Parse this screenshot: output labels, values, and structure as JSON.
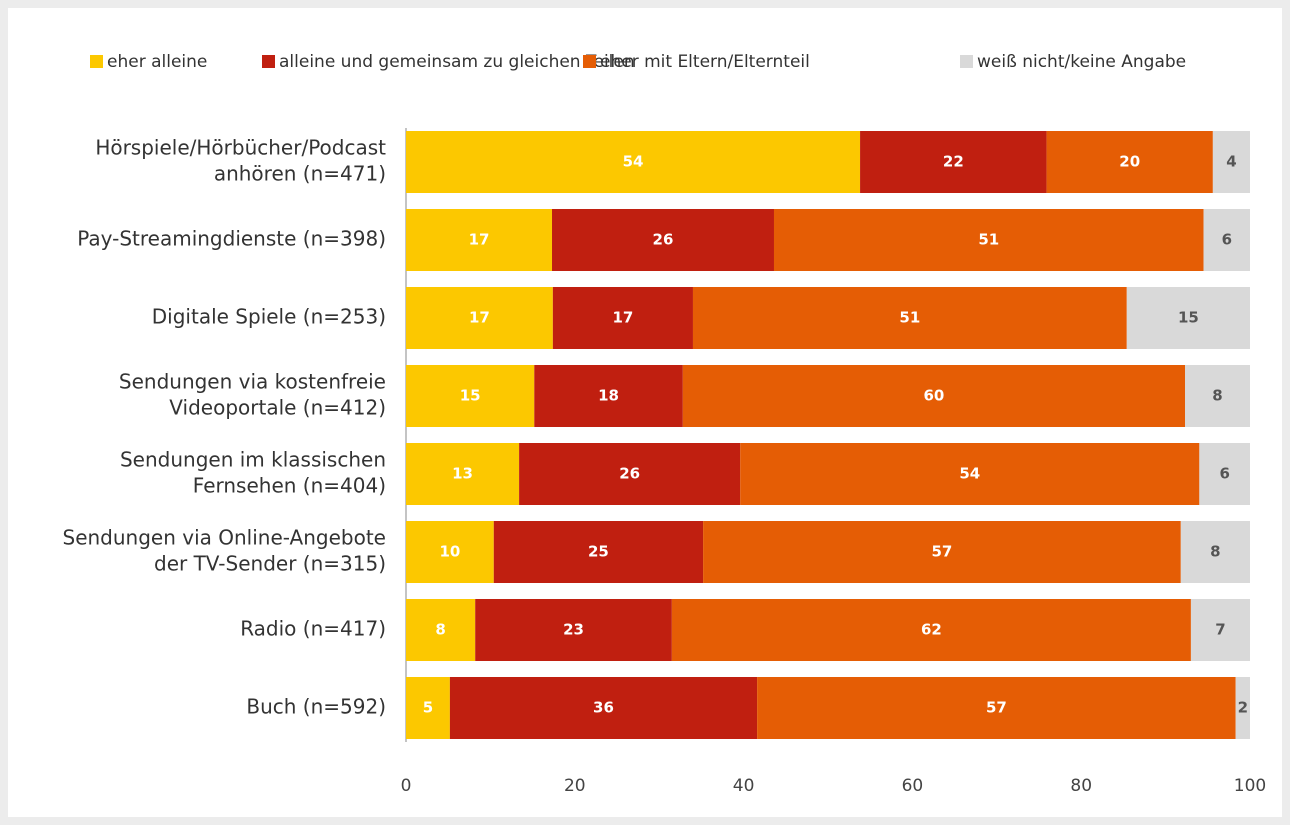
{
  "chart_data": {
    "type": "stacked-barh",
    "categories": [
      [
        "Hörspiele/Hörbücher/Podcast",
        "anhören (n=471)"
      ],
      [
        "Pay-Streamingdienste (n=398)"
      ],
      [
        "Digitale Spiele (n=253)"
      ],
      [
        "Sendungen via kostenfreie",
        "Videoportale (n=412)"
      ],
      [
        "Sendungen im klassischen",
        "Fernsehen (n=404)"
      ],
      [
        "Sendungen via Online-Angebote",
        "der TV-Sender (n=315)"
      ],
      [
        "Radio (n=417)"
      ],
      [
        "Buch (n=592)"
      ]
    ],
    "series": [
      {
        "name": "eher alleine",
        "color": "#fcc800",
        "label_color": "#ffffff",
        "values": [
          53.8,
          17.3,
          17.4,
          15.2,
          13.4,
          10.4,
          8.2,
          5.2
        ],
        "value_labels": [
          "54",
          "17",
          "17",
          "15",
          "13",
          "10",
          "8",
          "5"
        ]
      },
      {
        "name": "alleine und gemeinsam zu gleichen Teilen",
        "color": "#c01f10",
        "label_color": "#ffffff",
        "values": [
          22.1,
          26.3,
          16.6,
          17.6,
          26.2,
          24.8,
          23.3,
          36.4
        ],
        "value_labels": [
          "22",
          "26",
          "17",
          "18",
          "26",
          "25",
          "23",
          "36"
        ]
      },
      {
        "name": "eher mit Eltern/Elternteil",
        "color": "#e55d05",
        "label_color": "#ffffff",
        "values": [
          19.7,
          50.9,
          51.4,
          59.5,
          54.4,
          56.6,
          61.5,
          56.7
        ],
        "value_labels": [
          "20",
          "51",
          "51",
          "60",
          "54",
          "57",
          "62",
          "57"
        ]
      },
      {
        "name": "weiß nicht/keine Angabe",
        "color": "#d9d9d9",
        "label_color": "#555555",
        "values": [
          4.4,
          5.5,
          14.6,
          7.7,
          6.0,
          8.2,
          7.0,
          1.7
        ],
        "value_labels": [
          "4",
          "6",
          "15",
          "8",
          "6",
          "8",
          "7",
          "2"
        ]
      }
    ],
    "xlim": [
      0,
      100
    ],
    "xticks": [
      0,
      20,
      40,
      60,
      80,
      100
    ],
    "grid": false,
    "legend": "top"
  }
}
